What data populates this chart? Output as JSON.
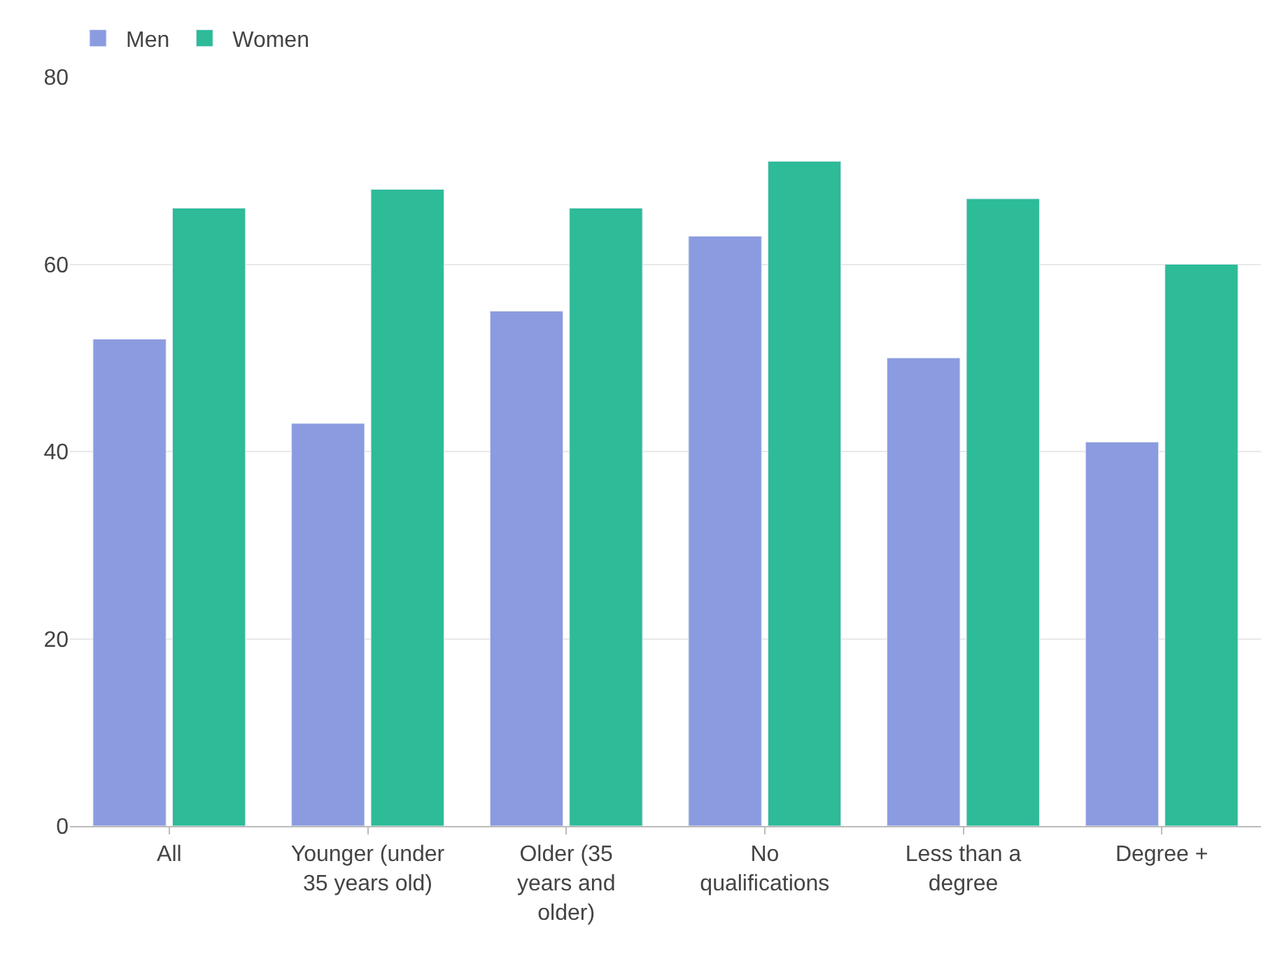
{
  "chart_data": {
    "type": "bar",
    "categories": [
      "All",
      "Younger (under 35 years old)",
      "Older (35 years and older)",
      "No qualifications",
      "Less than a degree",
      "Degree +"
    ],
    "series": [
      {
        "name": "Men",
        "color": "#8b9be0",
        "values": [
          52,
          43,
          55,
          63,
          50,
          41
        ]
      },
      {
        "name": "Women",
        "color": "#2dbb98",
        "values": [
          66,
          68,
          66,
          71,
          67,
          60
        ]
      }
    ],
    "ylim": [
      0,
      80
    ],
    "yticks": [
      0,
      20,
      40,
      60,
      80
    ],
    "grid": "y",
    "legend": "top left"
  }
}
